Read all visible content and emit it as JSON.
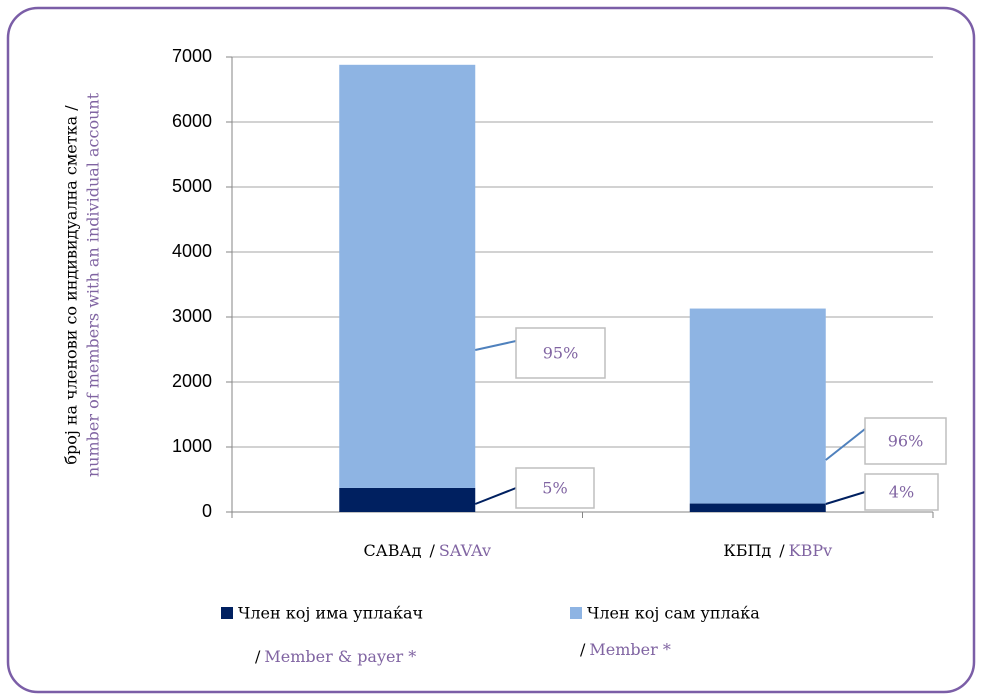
{
  "chart_data": {
    "type": "stacked_bar",
    "categories": [
      "САВАд",
      "КБПд"
    ],
    "categories_en": [
      "SAVAv",
      "KBPv"
    ],
    "separator": "/",
    "y_label": "број на членови со индивидуална сметка /",
    "y_label_en": "number of members with an individual account",
    "ylim": [
      0,
      7000
    ],
    "yticks": [
      0,
      1000,
      2000,
      3000,
      4000,
      5000,
      6000,
      7000
    ],
    "grid": true,
    "legend": "bottom",
    "series": [
      {
        "name": "Член кој има уплаќач",
        "name_en": "Member & payer *",
        "color": "#002060",
        "values": [
          370,
          130
        ],
        "labels": [
          "5%",
          "4%"
        ]
      },
      {
        "name": "Член кој сам уплаќа",
        "name_en": "Member *",
        "color": "#8eb4e3",
        "values": [
          6510,
          3000
        ],
        "labels": [
          "95%",
          "96%"
        ]
      }
    ]
  }
}
